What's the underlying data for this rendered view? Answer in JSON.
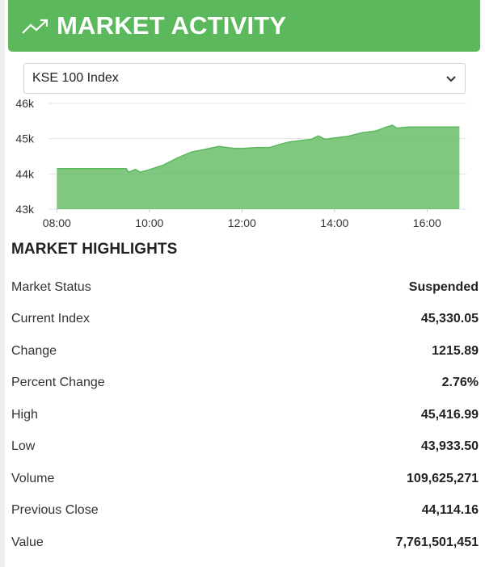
{
  "header": {
    "title": "MARKET ACTIVITY",
    "icon": "trend-up-icon",
    "background": "#5cb85c"
  },
  "index_select": {
    "selected": "KSE 100 Index"
  },
  "chart_data": {
    "type": "area",
    "series": [
      {
        "values": [
          [
            8.0,
            44.15
          ],
          [
            9.5,
            44.15
          ],
          [
            9.55,
            44.05
          ],
          [
            9.7,
            44.13
          ],
          [
            9.8,
            44.05
          ],
          [
            10.0,
            44.12
          ],
          [
            10.3,
            44.25
          ],
          [
            10.6,
            44.45
          ],
          [
            10.9,
            44.62
          ],
          [
            11.1,
            44.67
          ],
          [
            11.5,
            44.78
          ],
          [
            11.8,
            44.73
          ],
          [
            12.0,
            44.72
          ],
          [
            12.3,
            44.75
          ],
          [
            12.6,
            44.75
          ],
          [
            12.8,
            44.83
          ],
          [
            13.0,
            44.9
          ],
          [
            13.3,
            44.95
          ],
          [
            13.5,
            44.98
          ],
          [
            13.65,
            45.08
          ],
          [
            13.8,
            44.98
          ],
          [
            14.0,
            45.02
          ],
          [
            14.3,
            45.07
          ],
          [
            14.6,
            45.17
          ],
          [
            14.9,
            45.22
          ],
          [
            15.1,
            45.32
          ],
          [
            15.25,
            45.38
          ],
          [
            15.35,
            45.3
          ],
          [
            15.6,
            45.33
          ],
          [
            16.0,
            45.33
          ],
          [
            16.7,
            45.33
          ]
        ],
        "color": "#5cb85c"
      }
    ],
    "x_ticks": [
      "08:00",
      "10:00",
      "12:00",
      "14:00",
      "16:00"
    ],
    "x_tick_values": [
      8,
      10,
      12,
      14,
      16
    ],
    "y_ticks": [
      "43k",
      "44k",
      "45k",
      "46k"
    ],
    "y_tick_values": [
      43,
      44,
      45,
      46
    ],
    "xlim": [
      7.82,
      16.85
    ],
    "ylim": [
      43,
      46
    ],
    "grid": true,
    "legend": "none"
  },
  "highlights": {
    "title": "MARKET HIGHLIGHTS",
    "rows": [
      {
        "label": "Market Status",
        "value": "Suspended"
      },
      {
        "label": "Current Index",
        "value": "45,330.05"
      },
      {
        "label": "Change",
        "value": "1215.89"
      },
      {
        "label": "Percent Change",
        "value": "2.76%"
      },
      {
        "label": "High",
        "value": "45,416.99"
      },
      {
        "label": "Low",
        "value": "43,933.50"
      },
      {
        "label": "Volume",
        "value": "109,625,271"
      },
      {
        "label": "Previous Close",
        "value": "44,114.16"
      },
      {
        "label": "Value",
        "value": "7,761,501,451"
      }
    ]
  }
}
